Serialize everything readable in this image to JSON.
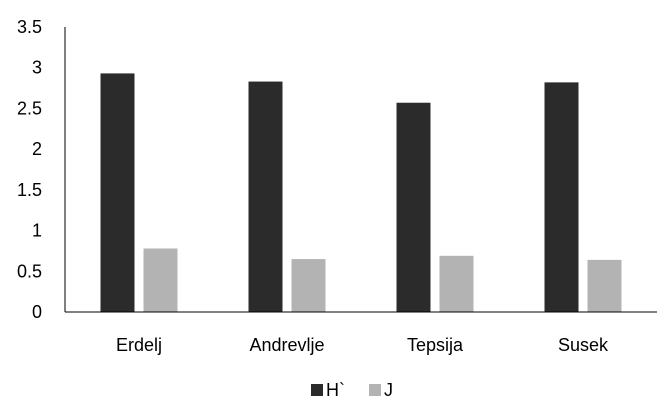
{
  "chart_data": {
    "type": "bar",
    "categories": [
      "Erdelj",
      "Andrevlje",
      "Tepsija",
      "Susek"
    ],
    "series": [
      {
        "name": "H`",
        "values": [
          2.93,
          2.83,
          2.57,
          2.82
        ],
        "color": "#2b2b2b"
      },
      {
        "name": "J",
        "values": [
          0.78,
          0.65,
          0.69,
          0.64
        ],
        "color": "#b3b3b3"
      }
    ],
    "yticks": [
      "0",
      "0.5",
      "1",
      "1.5",
      "2",
      "2.5",
      "3",
      "3.5"
    ],
    "ylim": [
      0,
      3.5
    ],
    "grid": false,
    "legend": "bottom-center"
  }
}
